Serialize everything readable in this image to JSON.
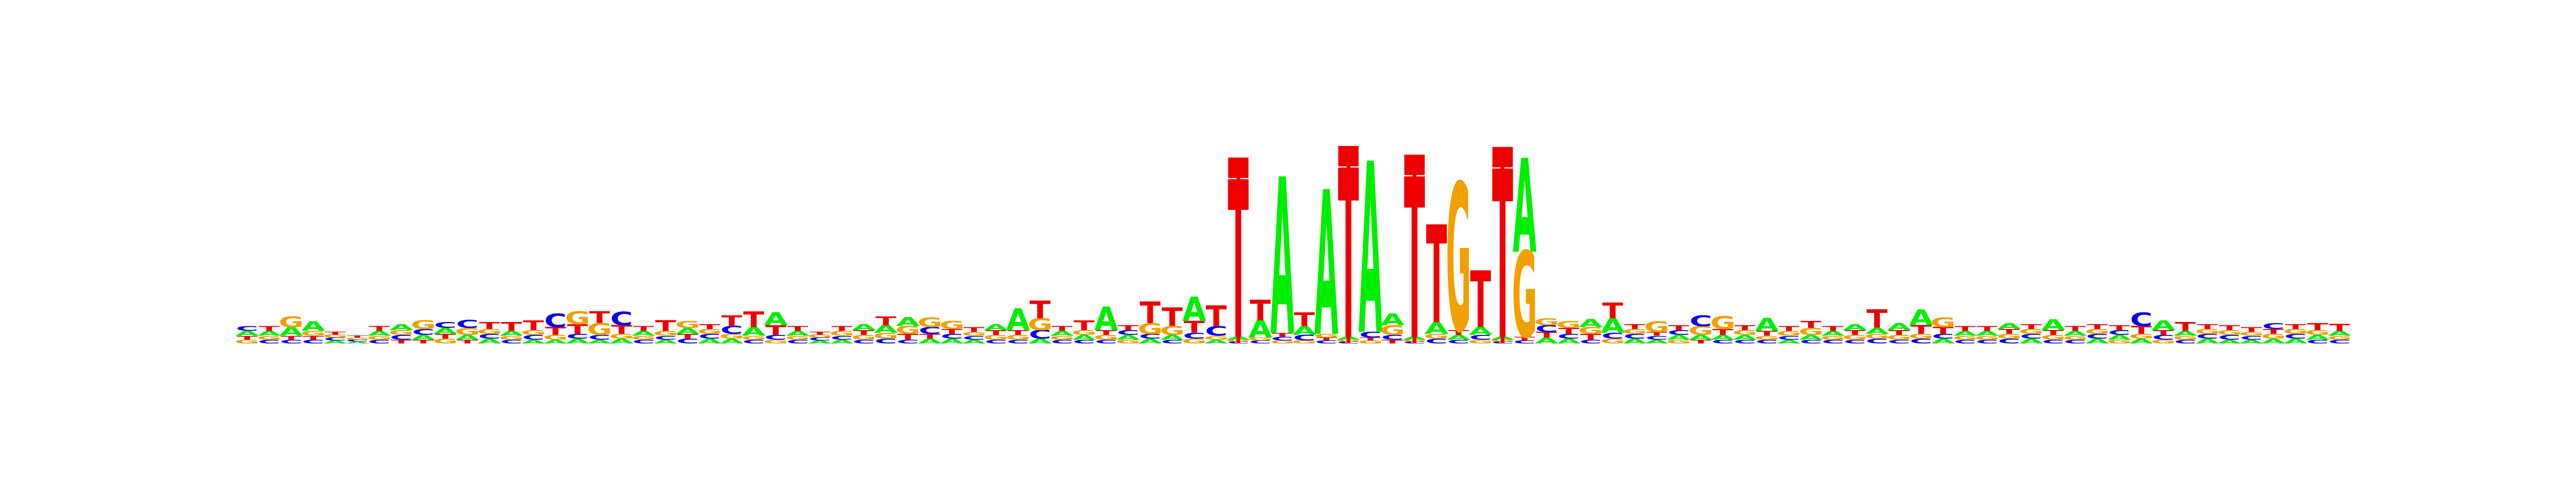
{
  "chart_data": {
    "type": "sequence-logo",
    "alphabet": [
      "A",
      "C",
      "G",
      "T"
    ],
    "colors": {
      "A": "#00ee00",
      "C": "#0000ee",
      "G": "#f0a000",
      "T": "#ee0000",
      "marker": "#ee0000"
    },
    "ylim": [
      0,
      2
    ],
    "grid": false,
    "legend": "none",
    "positions": [
      {
        "A": 0.05,
        "C": 0.05,
        "G": 0.04,
        "T": 0.04
      },
      {
        "A": 0.05,
        "C": 0.04,
        "G": 0.04,
        "T": 0.05
      },
      {
        "A": 0.09,
        "C": 0.04,
        "G": 0.11,
        "T": 0.04
      },
      {
        "A": 0.1,
        "C": 0.04,
        "G": 0.05,
        "T": 0.04
      },
      {
        "A": 0.03,
        "C": 0.03,
        "G": 0.03,
        "T": 0.03
      },
      {
        "A": 0.02,
        "C": 0.02,
        "G": 0.02,
        "T": 0.02
      },
      {
        "A": 0.05,
        "C": 0.04,
        "G": 0.04,
        "T": 0.05
      },
      {
        "A": 0.06,
        "C": 0.05,
        "G": 0.05,
        "T": 0.04
      },
      {
        "A": 0.05,
        "C": 0.06,
        "G": 0.09,
        "T": 0.04
      },
      {
        "A": 0.06,
        "C": 0.06,
        "G": 0.05,
        "T": 0.05
      },
      {
        "A": 0.05,
        "C": 0.08,
        "G": 0.07,
        "T": 0.04
      },
      {
        "A": 0.05,
        "C": 0.05,
        "G": 0.05,
        "T": 0.07
      },
      {
        "A": 0.05,
        "C": 0.04,
        "G": 0.04,
        "T": 0.09
      },
      {
        "A": 0.04,
        "C": 0.05,
        "G": 0.05,
        "T": 0.1
      },
      {
        "A": 0.04,
        "C": 0.14,
        "G": 0.05,
        "T": 0.08
      },
      {
        "A": 0.05,
        "C": 0.05,
        "G": 0.13,
        "T": 0.1
      },
      {
        "A": 0.04,
        "C": 0.05,
        "G": 0.12,
        "T": 0.12
      },
      {
        "A": 0.05,
        "C": 0.14,
        "G": 0.05,
        "T": 0.09
      },
      {
        "A": 0.05,
        "C": 0.04,
        "G": 0.04,
        "T": 0.05
      },
      {
        "A": 0.04,
        "C": 0.04,
        "G": 0.05,
        "T": 0.11
      },
      {
        "A": 0.06,
        "C": 0.05,
        "G": 0.07,
        "T": 0.05
      },
      {
        "A": 0.05,
        "C": 0.05,
        "G": 0.05,
        "T": 0.05
      },
      {
        "A": 0.05,
        "C": 0.08,
        "G": 0.05,
        "T": 0.11
      },
      {
        "A": 0.09,
        "C": 0.04,
        "G": 0.04,
        "T": 0.16
      },
      {
        "A": 0.13,
        "C": 0.05,
        "G": 0.04,
        "T": 0.1
      },
      {
        "A": 0.05,
        "C": 0.04,
        "G": 0.04,
        "T": 0.05
      },
      {
        "A": 0.03,
        "C": 0.03,
        "G": 0.03,
        "T": 0.03
      },
      {
        "A": 0.04,
        "C": 0.04,
        "G": 0.05,
        "T": 0.05
      },
      {
        "A": 0.06,
        "C": 0.04,
        "G": 0.05,
        "T": 0.05
      },
      {
        "A": 0.08,
        "C": 0.05,
        "G": 0.06,
        "T": 0.09
      },
      {
        "A": 0.09,
        "C": 0.04,
        "G": 0.08,
        "T": 0.06
      },
      {
        "A": 0.05,
        "C": 0.07,
        "G": 0.1,
        "T": 0.05
      },
      {
        "A": 0.05,
        "C": 0.05,
        "G": 0.08,
        "T": 0.05
      },
      {
        "A": 0.04,
        "C": 0.04,
        "G": 0.04,
        "T": 0.05
      },
      {
        "A": 0.06,
        "C": 0.04,
        "G": 0.05,
        "T": 0.05
      },
      {
        "A": 0.22,
        "C": 0.04,
        "G": 0.05,
        "T": 0.05
      },
      {
        "A": 0.05,
        "C": 0.09,
        "G": 0.12,
        "T": 0.18
      },
      {
        "A": 0.05,
        "C": 0.04,
        "G": 0.04,
        "T": 0.05
      },
      {
        "A": 0.05,
        "C": 0.04,
        "G": 0.05,
        "T": 0.1
      },
      {
        "A": 0.24,
        "C": 0.04,
        "G": 0.05,
        "T": 0.05
      },
      {
        "A": 0.05,
        "C": 0.05,
        "G": 0.04,
        "T": 0.05
      },
      {
        "A": 0.05,
        "C": 0.05,
        "G": 0.11,
        "T": 0.22
      },
      {
        "A": 0.05,
        "C": 0.04,
        "G": 0.09,
        "T": 0.19
      },
      {
        "A": 0.25,
        "C": 0.06,
        "G": 0.05,
        "T": 0.12
      },
      {
        "A": 0.04,
        "C": 0.1,
        "G": 0.04,
        "T": 0.21
      },
      {
        "A": 0.03,
        "C": 0.02,
        "G": 0.02,
        "T": 1.61
      },
      {
        "A": 0.18,
        "C": 0.03,
        "G": 0.03,
        "T": 0.21
      },
      {
        "A": 1.6,
        "C": 0.04,
        "G": 0.03,
        "T": 0.04
      },
      {
        "A": 0.09,
        "C": 0.06,
        "G": 0.03,
        "T": 0.14
      },
      {
        "A": 1.48,
        "C": 0.03,
        "G": 0.04,
        "T": 0.03
      },
      {
        "A": 0.03,
        "C": 0.02,
        "G": 0.02,
        "T": 1.73
      },
      {
        "A": 1.75,
        "C": 0.06,
        "G": 0.03,
        "T": 0.03
      },
      {
        "A": 0.12,
        "C": 0.05,
        "G": 0.1,
        "T": 0.04
      },
      {
        "A": 0.03,
        "C": 0.02,
        "G": 0.02,
        "T": 1.64
      },
      {
        "A": 0.12,
        "C": 0.05,
        "G": 0.05,
        "T": 1.0
      },
      {
        "A": 0.05,
        "C": 0.04,
        "G": 1.51,
        "T": 0.05
      },
      {
        "A": 0.08,
        "C": 0.05,
        "G": 0.04,
        "T": 0.58
      },
      {
        "A": 0.03,
        "C": 0.02,
        "G": 0.02,
        "T": 1.72
      },
      {
        "A": 0.96,
        "C": 0.03,
        "G": 0.88,
        "T": 0.04
      },
      {
        "A": 0.06,
        "C": 0.07,
        "G": 0.07,
        "T": 0.06
      },
      {
        "A": 0.05,
        "C": 0.05,
        "G": 0.07,
        "T": 0.06
      },
      {
        "A": 0.08,
        "C": 0.04,
        "G": 0.07,
        "T": 0.06
      },
      {
        "A": 0.15,
        "C": 0.06,
        "G": 0.05,
        "T": 0.16
      },
      {
        "A": 0.05,
        "C": 0.05,
        "G": 0.05,
        "T": 0.05
      },
      {
        "A": 0.04,
        "C": 0.04,
        "G": 0.11,
        "T": 0.04
      },
      {
        "A": 0.05,
        "C": 0.05,
        "G": 0.04,
        "T": 0.05
      },
      {
        "A": 0.05,
        "C": 0.11,
        "G": 0.09,
        "T": 0.04
      },
      {
        "A": 0.05,
        "C": 0.04,
        "G": 0.13,
        "T": 0.06
      },
      {
        "A": 0.05,
        "C": 0.04,
        "G": 0.05,
        "T": 0.05
      },
      {
        "A": 0.13,
        "C": 0.04,
        "G": 0.04,
        "T": 0.05
      },
      {
        "A": 0.04,
        "C": 0.04,
        "G": 0.05,
        "T": 0.05
      },
      {
        "A": 0.05,
        "C": 0.04,
        "G": 0.07,
        "T": 0.07
      },
      {
        "A": 0.05,
        "C": 0.04,
        "G": 0.04,
        "T": 0.05
      },
      {
        "A": 0.06,
        "C": 0.04,
        "G": 0.05,
        "T": 0.05
      },
      {
        "A": 0.06,
        "C": 0.05,
        "G": 0.05,
        "T": 0.19
      },
      {
        "A": 0.07,
        "C": 0.04,
        "G": 0.05,
        "T": 0.05
      },
      {
        "A": 0.16,
        "C": 0.05,
        "G": 0.05,
        "T": 0.09
      },
      {
        "A": 0.05,
        "C": 0.05,
        "G": 0.1,
        "T": 0.07
      },
      {
        "A": 0.05,
        "C": 0.04,
        "G": 0.04,
        "T": 0.05
      },
      {
        "A": 0.05,
        "C": 0.04,
        "G": 0.04,
        "T": 0.05
      },
      {
        "A": 0.06,
        "C": 0.05,
        "G": 0.05,
        "T": 0.05
      },
      {
        "A": 0.05,
        "C": 0.05,
        "G": 0.05,
        "T": 0.05
      },
      {
        "A": 0.11,
        "C": 0.04,
        "G": 0.05,
        "T": 0.05
      },
      {
        "A": 0.05,
        "C": 0.04,
        "G": 0.04,
        "T": 0.05
      },
      {
        "A": 0.05,
        "C": 0.05,
        "G": 0.05,
        "T": 0.05
      },
      {
        "A": 0.05,
        "C": 0.05,
        "G": 0.04,
        "T": 0.05
      },
      {
        "A": 0.05,
        "C": 0.14,
        "G": 0.05,
        "T": 0.08
      },
      {
        "A": 0.1,
        "C": 0.05,
        "G": 0.04,
        "T": 0.05
      },
      {
        "A": 0.05,
        "C": 0.04,
        "G": 0.04,
        "T": 0.09
      },
      {
        "A": 0.05,
        "C": 0.05,
        "G": 0.05,
        "T": 0.05
      },
      {
        "A": 0.04,
        "C": 0.05,
        "G": 0.05,
        "T": 0.05
      },
      {
        "A": 0.04,
        "C": 0.04,
        "G": 0.04,
        "T": 0.05
      },
      {
        "A": 0.05,
        "C": 0.06,
        "G": 0.05,
        "T": 0.05
      },
      {
        "A": 0.05,
        "C": 0.05,
        "G": 0.05,
        "T": 0.05
      },
      {
        "A": 0.05,
        "C": 0.04,
        "G": 0.05,
        "T": 0.07
      },
      {
        "A": 0.05,
        "C": 0.04,
        "G": 0.04,
        "T": 0.07
      }
    ],
    "markers": [
      45,
      50,
      53,
      57
    ]
  }
}
